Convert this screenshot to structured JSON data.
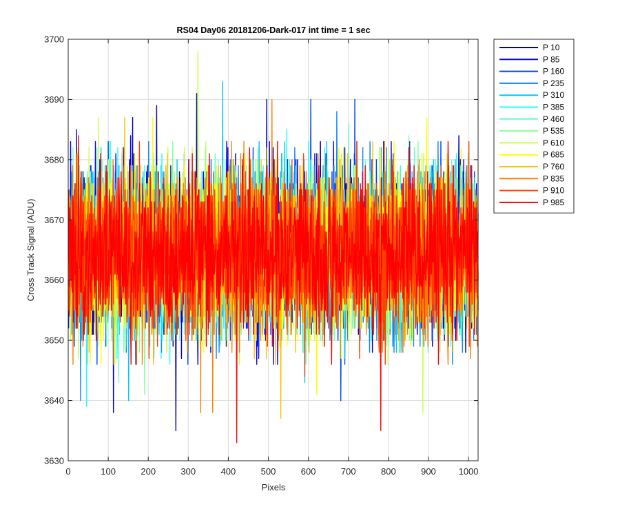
{
  "chart_data": {
    "type": "line",
    "title": "RS04 Day06 20181206-Dark-017 int time = 1 sec",
    "xlabel": "Pixels",
    "ylabel": "Cross Track Signal (ADU)",
    "xlim": [
      0,
      1024
    ],
    "ylim": [
      3630,
      3700
    ],
    "xticks": [
      0,
      100,
      200,
      300,
      400,
      500,
      600,
      700,
      800,
      900,
      1000
    ],
    "yticks": [
      3630,
      3640,
      3650,
      3660,
      3670,
      3680,
      3690,
      3700
    ],
    "grid": true,
    "legend_position": "outside-top-right",
    "n_points": 1024,
    "mean_signal": 3664.5,
    "noise_sd": 7,
    "series": [
      {
        "name": "P 10",
        "color": "#0000b2",
        "seed": 11,
        "spikes": [
          [
            160,
            3687
          ],
          [
            220,
            3689
          ],
          [
            268,
            3635
          ],
          [
            320,
            3691
          ],
          [
            495,
            3690
          ],
          [
            975,
            3684
          ],
          [
            112,
            3638
          ]
        ]
      },
      {
        "name": "P 85",
        "color": "#0000ff",
        "seed": 23,
        "spikes": [
          [
            155,
            3684
          ],
          [
            300,
            3680
          ],
          [
            20,
            3685
          ],
          [
            470,
            3646
          ]
        ]
      },
      {
        "name": "P 160",
        "color": "#0044ff",
        "seed": 37,
        "spikes": [
          [
            605,
            3690
          ],
          [
            715,
            3690
          ],
          [
            680,
            3640
          ]
        ]
      },
      {
        "name": "P 235",
        "color": "#0a86ff",
        "seed": 41,
        "spikes": [
          [
            670,
            3688
          ],
          [
            735,
            3682
          ],
          [
            30,
            3640
          ]
        ]
      },
      {
        "name": "P 310",
        "color": "#00c8ff",
        "seed": 53,
        "spikes": [
          [
            385,
            3693
          ],
          [
            590,
            3643
          ],
          [
            150,
            3640
          ]
        ]
      },
      {
        "name": "P 385",
        "color": "#1fffff",
        "seed": 61,
        "spikes": [
          [
            545,
            3685
          ],
          [
            640,
            3682
          ],
          [
            45,
            3639
          ]
        ]
      },
      {
        "name": "P 460",
        "color": "#5fffd0",
        "seed": 71,
        "spikes": [
          [
            125,
            3643
          ],
          [
            700,
            3686
          ]
        ]
      },
      {
        "name": "P 535",
        "color": "#85ff9c",
        "seed": 83,
        "spikes": [
          [
            260,
            3683
          ],
          [
            850,
            3684
          ],
          [
            190,
            3641
          ]
        ]
      },
      {
        "name": "P 610",
        "color": "#c8ff4a",
        "seed": 97,
        "spikes": [
          [
            323,
            3698
          ],
          [
            75,
            3687
          ],
          [
            885,
            3638
          ],
          [
            360,
            3640
          ]
        ]
      },
      {
        "name": "P 685",
        "color": "#ffff00",
        "seed": 101,
        "spikes": [
          [
            895,
            3687
          ],
          [
            210,
            3687
          ],
          [
            620,
            3641
          ]
        ]
      },
      {
        "name": "P 760",
        "color": "#ffc000",
        "seed": 113,
        "spikes": [
          [
            530,
            3637
          ],
          [
            760,
            3683
          ],
          [
            140,
            3687
          ]
        ]
      },
      {
        "name": "P 835",
        "color": "#ff8000",
        "seed": 127,
        "spikes": [
          [
            508,
            3690
          ],
          [
            330,
            3638
          ],
          [
            360,
            3638
          ],
          [
            720,
            3683
          ]
        ]
      },
      {
        "name": "P 910",
        "color": "#ff4000",
        "seed": 131,
        "spikes": [
          [
            720,
            3683
          ],
          [
            1000,
            3683
          ],
          [
            590,
            3644
          ]
        ]
      },
      {
        "name": "P 985",
        "color": "#ff0000",
        "seed": 149,
        "spikes": [
          [
            420,
            3633
          ],
          [
            780,
            3635
          ],
          [
            25,
            3684
          ],
          [
            850,
            3682
          ]
        ]
      }
    ]
  }
}
